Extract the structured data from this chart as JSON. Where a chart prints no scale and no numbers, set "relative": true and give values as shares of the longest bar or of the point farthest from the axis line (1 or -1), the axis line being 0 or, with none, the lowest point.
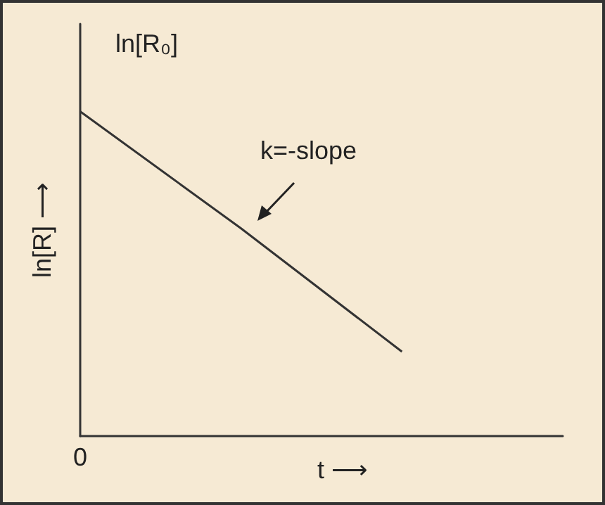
{
  "chart_data": {
    "type": "line",
    "relative": true,
    "xlabel": "t ⟶",
    "ylabel": "ln[R] ⟶",
    "categories": [
      null,
      null,
      null,
      null
    ],
    "series": [
      {
        "color": "#333333",
        "values": [
          1,
          0.64,
          0.26,
          null
        ]
      }
    ],
    "annotations": [
      "ln[R₀]",
      "k=-slope",
      "0"
    ],
    "marker": "none",
    "grid": false
  }
}
